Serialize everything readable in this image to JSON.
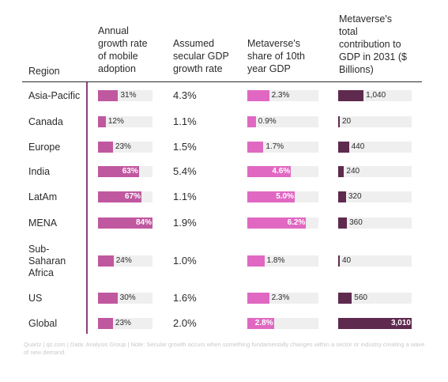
{
  "table": {
    "headers": {
      "region": "Region",
      "mobile": "Annual\ngrowth rate\nof mobile\nadoption",
      "gdp": "Assumed\nsecular GDP\ngrowth rate",
      "share": "Metaverse's\nshare of 10th\nyear GDP",
      "contribution": "Metaverse's\ntotal\ncontribution to\nGDP in 2031 ($\nBillions)"
    },
    "footer": "Quartz | qz.com | Data: Analysis Group | Note: Secular growth occurs when something fundamentally changes within a sector or industry creating a wave of new demand."
  },
  "chart_data": {
    "type": "table",
    "columns": [
      "Region",
      "Annual growth rate of mobile adoption",
      "Assumed secular GDP growth rate",
      "Metaverse's share of 10th year GDP",
      "Metaverse's total contribution to GDP in 2031 ($ Billions)"
    ],
    "colors": {
      "mobile": "#c0589f",
      "share": "#e068c2",
      "contribution": "#5e2a4e",
      "track": "#efefef"
    },
    "rows": [
      {
        "region": "Asia-Pacific",
        "mobile": 31,
        "mobile_label": "31%",
        "gdp": "4.3%",
        "share": 2.3,
        "share_label": "2.3%",
        "contribution": 1040,
        "contribution_label": "1,040"
      },
      {
        "region": "Canada",
        "mobile": 12,
        "mobile_label": "12%",
        "gdp": "1.1%",
        "share": 0.9,
        "share_label": "0.9%",
        "contribution": 20,
        "contribution_label": "20"
      },
      {
        "region": "Europe",
        "mobile": 23,
        "mobile_label": "23%",
        "gdp": "1.5%",
        "share": 1.7,
        "share_label": "1.7%",
        "contribution": 440,
        "contribution_label": "440"
      },
      {
        "region": "India",
        "mobile": 63,
        "mobile_label": "63%",
        "gdp": "5.4%",
        "share": 4.6,
        "share_label": "4.6%",
        "contribution": 240,
        "contribution_label": "240"
      },
      {
        "region": "LatAm",
        "mobile": 67,
        "mobile_label": "67%",
        "gdp": "1.1%",
        "share": 5.0,
        "share_label": "5.0%",
        "contribution": 320,
        "contribution_label": "320"
      },
      {
        "region": "MENA",
        "mobile": 84,
        "mobile_label": "84%",
        "gdp": "1.9%",
        "share": 6.2,
        "share_label": "6.2%",
        "contribution": 360,
        "contribution_label": "360"
      },
      {
        "region": "Sub-\nSaharan\nAfrica",
        "mobile": 24,
        "mobile_label": "24%",
        "gdp": "1.0%",
        "share": 1.8,
        "share_label": "1.8%",
        "contribution": 40,
        "contribution_label": "40"
      },
      {
        "region": "US",
        "mobile": 30,
        "mobile_label": "30%",
        "gdp": "1.6%",
        "share": 2.3,
        "share_label": "2.3%",
        "contribution": 560,
        "contribution_label": "560"
      },
      {
        "region": "Global",
        "mobile": 23,
        "mobile_label": "23%",
        "gdp": "2.0%",
        "share": 2.8,
        "share_label": "2.8%",
        "contribution": 3010,
        "contribution_label": "3,010"
      }
    ]
  }
}
